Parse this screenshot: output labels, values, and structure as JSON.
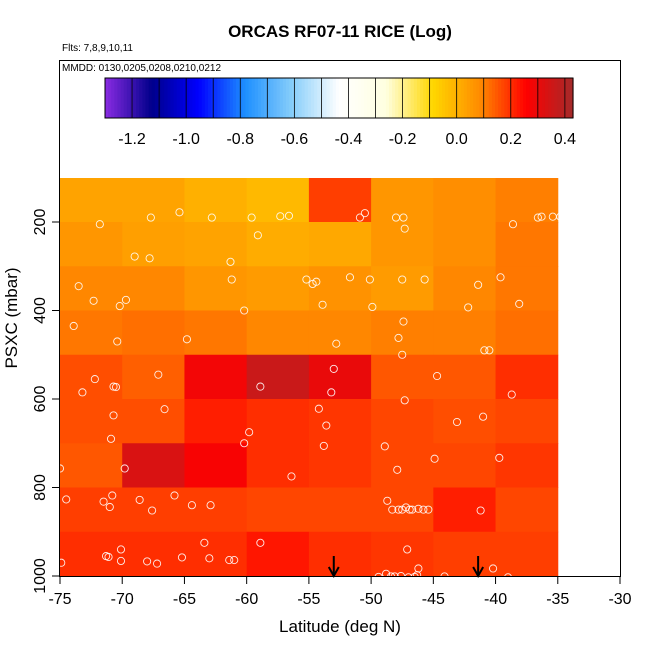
{
  "chart_data": {
    "type": "heatmap",
    "title": "ORCAS RF07-11 RICE (Log)",
    "flights_note": "Flts: 7,8,9,10,11",
    "dates_note": "MMDD: 0130,0205,0208,0210,0212",
    "xlabel": "Latitude (deg N)",
    "ylabel": "PSXC (mbar)",
    "xlim": [
      -75,
      -30
    ],
    "ylim": [
      1000,
      100
    ],
    "x_ticks": [
      -75,
      -70,
      -65,
      -60,
      -55,
      -50,
      -45,
      -40,
      -35,
      -30
    ],
    "x_tick_labels": [
      "-75",
      "-70",
      "-65",
      "-60",
      "-55",
      "-50",
      "-45",
      "-40",
      "-35",
      "-30"
    ],
    "y_ticks": [
      200,
      400,
      600,
      800,
      1000
    ],
    "y_tick_labels": [
      "200",
      "400",
      "600",
      "800",
      "1000"
    ],
    "colorbar": {
      "min": -1.3,
      "max": 0.43,
      "ticks": [
        -1.2,
        -1.0,
        -0.8,
        -0.6,
        -0.4,
        -0.2,
        0.0,
        0.2,
        0.4
      ],
      "tick_labels": [
        "-1.2",
        "-1.0",
        "-0.8",
        "-0.6",
        "-0.4",
        "-0.2",
        "0.0",
        "0.2",
        "0.4"
      ],
      "palette": [
        "#8a2be2",
        "#00008b",
        "#0000ff",
        "#1e90ff",
        "#87cefa",
        "#ffffff",
        "#ffffe0",
        "#ffd700",
        "#ff8c00",
        "#ff0000",
        "#a52a2a"
      ]
    },
    "grid": false,
    "x_edges": [
      -75,
      -70,
      -65,
      -60,
      -55,
      -50,
      -45,
      -40,
      -35
    ],
    "y_edges": [
      100,
      200,
      300,
      400,
      500,
      600,
      700,
      800,
      900,
      1000
    ],
    "cells": [
      [
        0.03,
        0.03,
        0.0,
        -0.02,
        0.18,
        0.06,
        0.08,
        0.1
      ],
      [
        0.06,
        0.04,
        0.03,
        0.01,
        0.02,
        0.06,
        0.08,
        0.11
      ],
      [
        0.09,
        0.09,
        0.06,
        0.05,
        0.07,
        0.05,
        0.09,
        0.11
      ],
      [
        0.11,
        0.12,
        0.11,
        0.09,
        0.09,
        0.1,
        0.1,
        0.12
      ],
      [
        0.16,
        0.14,
        0.28,
        0.36,
        0.3,
        0.15,
        0.15,
        0.2
      ],
      [
        0.16,
        0.16,
        0.22,
        0.2,
        0.19,
        0.17,
        0.16,
        0.17
      ],
      [
        0.15,
        0.33,
        0.27,
        0.2,
        0.19,
        0.17,
        0.17,
        0.19
      ],
      [
        0.18,
        0.18,
        0.18,
        0.17,
        0.17,
        0.17,
        0.22,
        0.17
      ],
      [
        0.2,
        0.2,
        0.2,
        0.23,
        0.2,
        0.19,
        0.18,
        0.18
      ]
    ],
    "observations": [
      [
        -71.8,
        205
      ],
      [
        -67.7,
        190
      ],
      [
        -65.4,
        178
      ],
      [
        -62.8,
        190
      ],
      [
        -59.6,
        190
      ],
      [
        -57.3,
        187
      ],
      [
        -56.6,
        186
      ],
      [
        -50.9,
        190
      ],
      [
        -50.5,
        180
      ],
      [
        -48.0,
        190
      ],
      [
        -47.4,
        190
      ],
      [
        -47.3,
        215
      ],
      [
        -38.6,
        205
      ],
      [
        -36.6,
        190
      ],
      [
        -36.3,
        188
      ],
      [
        -35.4,
        188
      ],
      [
        -34.8,
        188
      ],
      [
        -69.0,
        278
      ],
      [
        -67.8,
        282
      ],
      [
        -61.3,
        290
      ],
      [
        -59.1,
        230
      ],
      [
        -73.5,
        345
      ],
      [
        -72.3,
        378
      ],
      [
        -70.2,
        390
      ],
      [
        -69.7,
        376
      ],
      [
        -61.2,
        330
      ],
      [
        -60.2,
        400
      ],
      [
        -55.2,
        330
      ],
      [
        -54.7,
        340
      ],
      [
        -54.4,
        335
      ],
      [
        -53.9,
        387
      ],
      [
        -51.7,
        325
      ],
      [
        -50.1,
        330
      ],
      [
        -49.9,
        392
      ],
      [
        -47.5,
        330
      ],
      [
        -45.7,
        330
      ],
      [
        -42.2,
        393
      ],
      [
        -41.4,
        342
      ],
      [
        -39.6,
        325
      ],
      [
        -38.1,
        385
      ],
      [
        -73.9,
        435
      ],
      [
        -70.4,
        470
      ],
      [
        -64.8,
        465
      ],
      [
        -52.8,
        475
      ],
      [
        -47.8,
        462
      ],
      [
        -47.4,
        425
      ],
      [
        -47.5,
        500
      ],
      [
        -40.9,
        490
      ],
      [
        -40.5,
        490
      ],
      [
        -72.2,
        555
      ],
      [
        -73.2,
        585
      ],
      [
        -70.7,
        572
      ],
      [
        -70.5,
        573
      ],
      [
        -67.1,
        545
      ],
      [
        -58.9,
        572
      ],
      [
        -53.0,
        532
      ],
      [
        -53.2,
        585
      ],
      [
        -47.3,
        603
      ],
      [
        -44.7,
        548
      ],
      [
        -38.7,
        590
      ],
      [
        -70.7,
        637
      ],
      [
        -70.9,
        690
      ],
      [
        -66.6,
        623
      ],
      [
        -60.2,
        700
      ],
      [
        -59.8,
        675
      ],
      [
        -54.2,
        622
      ],
      [
        -53.6,
        660
      ],
      [
        -53.8,
        706
      ],
      [
        -48.9,
        707
      ],
      [
        -43.1,
        652
      ],
      [
        -41.0,
        640
      ],
      [
        -75.0,
        757
      ],
      [
        -69.8,
        757
      ],
      [
        -56.4,
        775
      ],
      [
        -47.9,
        760
      ],
      [
        -44.9,
        735
      ],
      [
        -39.7,
        733
      ],
      [
        -74.5,
        827
      ],
      [
        -71.5,
        832
      ],
      [
        -71.0,
        844
      ],
      [
        -70.8,
        818
      ],
      [
        -68.6,
        828
      ],
      [
        -67.6,
        852
      ],
      [
        -65.8,
        818
      ],
      [
        -64.4,
        840
      ],
      [
        -62.9,
        840
      ],
      [
        -48.7,
        830
      ],
      [
        -48.3,
        850
      ],
      [
        -47.8,
        850
      ],
      [
        -47.5,
        850
      ],
      [
        -47.2,
        845
      ],
      [
        -46.9,
        850
      ],
      [
        -46.7,
        850
      ],
      [
        -46.2,
        848
      ],
      [
        -45.8,
        850
      ],
      [
        -45.4,
        850
      ],
      [
        -41.2,
        852
      ],
      [
        -74.9,
        970
      ],
      [
        -71.3,
        955
      ],
      [
        -71.1,
        957
      ],
      [
        -70.1,
        966
      ],
      [
        -70.1,
        940
      ],
      [
        -68.0,
        967
      ],
      [
        -67.2,
        972
      ],
      [
        -65.2,
        958
      ],
      [
        -63.4,
        925
      ],
      [
        -63.0,
        960
      ],
      [
        -61.4,
        964
      ],
      [
        -61.0,
        964
      ],
      [
        -58.9,
        925
      ],
      [
        -49.4,
        1002
      ],
      [
        -48.8,
        995
      ],
      [
        -48.4,
        1001
      ],
      [
        -48.1,
        1001
      ],
      [
        -47.6,
        1000
      ],
      [
        -47.1,
        940
      ],
      [
        -47.0,
        1003
      ],
      [
        -46.5,
        1002
      ],
      [
        -46.3,
        998
      ],
      [
        -46.2,
        983
      ],
      [
        -44.1,
        1001
      ],
      [
        -40.2,
        983
      ],
      [
        -39.0,
        1003
      ]
    ],
    "arrows_x": [
      -53.0,
      -41.4
    ]
  }
}
